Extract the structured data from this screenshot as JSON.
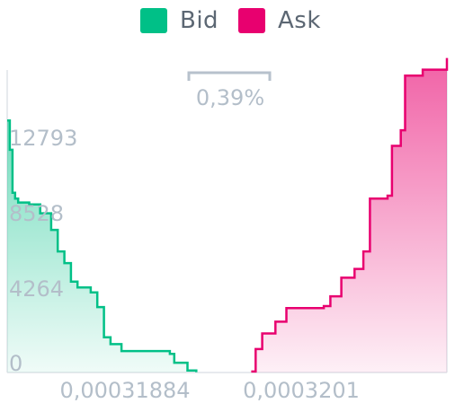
{
  "legend": {
    "bid": {
      "label": "Bid",
      "color": "#00c087"
    },
    "ask": {
      "label": "Ask",
      "color": "#e8006f"
    }
  },
  "spread_label": "0,39%",
  "chart_data": {
    "type": "area",
    "title": "",
    "xlabel": "",
    "ylabel": "",
    "x_tick_labels": [
      "0,00031884",
      "0,0003201"
    ],
    "y_tick_labels": [
      "0",
      "4264",
      "8528",
      "12793"
    ],
    "ylim": [
      0,
      17000
    ],
    "grid": false,
    "legend_position": "top-center",
    "series": [
      {
        "name": "Bid",
        "color": "#00c087",
        "points": [
          [
            0,
            12900
          ],
          [
            0.006,
            11400
          ],
          [
            0.012,
            9200
          ],
          [
            0.018,
            8900
          ],
          [
            0.025,
            8700
          ],
          [
            0.05,
            8600
          ],
          [
            0.075,
            8150
          ],
          [
            0.1,
            7300
          ],
          [
            0.115,
            6200
          ],
          [
            0.13,
            5600
          ],
          [
            0.145,
            4650
          ],
          [
            0.16,
            4350
          ],
          [
            0.19,
            4100
          ],
          [
            0.205,
            3350
          ],
          [
            0.22,
            1800
          ],
          [
            0.235,
            1450
          ],
          [
            0.26,
            1100
          ],
          [
            0.37,
            950
          ],
          [
            0.38,
            500
          ],
          [
            0.41,
            100
          ],
          [
            0.43,
            20
          ]
        ]
      },
      {
        "name": "Ask",
        "color": "#e8006f",
        "points": [
          [
            0.555,
            50
          ],
          [
            0.565,
            1200
          ],
          [
            0.58,
            2000
          ],
          [
            0.61,
            2600
          ],
          [
            0.635,
            3300
          ],
          [
            0.72,
            3400
          ],
          [
            0.735,
            3900
          ],
          [
            0.76,
            4850
          ],
          [
            0.79,
            5300
          ],
          [
            0.81,
            6200
          ],
          [
            0.825,
            8900
          ],
          [
            0.865,
            9050
          ],
          [
            0.875,
            11600
          ],
          [
            0.895,
            12400
          ],
          [
            0.905,
            15200
          ],
          [
            0.945,
            15500
          ],
          [
            1.0,
            16100
          ]
        ]
      }
    ]
  }
}
